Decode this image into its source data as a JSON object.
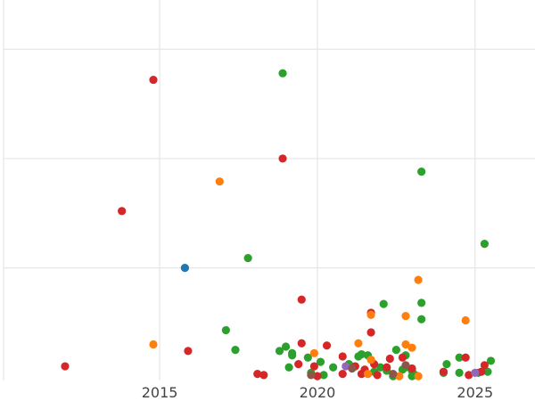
{
  "chart_data": {
    "type": "scatter",
    "title": "",
    "xlabel": "",
    "ylabel": "",
    "x_ticks": [
      2015,
      2020,
      2025
    ],
    "xlim": [
      2010.05,
      2026.9
    ],
    "ylim": [
      -0.03,
      3.45
    ],
    "y_grid": [
      1,
      2,
      3
    ],
    "grid": true,
    "legend": "none",
    "colors": {
      "green": "#2ca02c",
      "red": "#d62728",
      "orange": "#ff7f0e",
      "blue": "#1f77b4",
      "purple": "#9467bd",
      "brown": "#8c564b"
    },
    "series": [
      {
        "color": "green",
        "points": [
          [
            2018.9,
            2.78
          ],
          [
            2023.3,
            1.88
          ],
          [
            2025.3,
            1.22
          ],
          [
            2017.8,
            1.09
          ],
          [
            2022.1,
            0.67
          ],
          [
            2023.3,
            0.68
          ],
          [
            2023.3,
            0.53
          ],
          [
            2017.1,
            0.43
          ],
          [
            2017.4,
            0.25
          ],
          [
            2018.8,
            0.24
          ],
          [
            2019.0,
            0.28
          ],
          [
            2019.2,
            0.22
          ],
          [
            2019.2,
            0.2
          ],
          [
            2019.7,
            0.18
          ],
          [
            2020.1,
            0.14
          ],
          [
            2019.1,
            0.09
          ],
          [
            2020.5,
            0.09
          ],
          [
            2021.0,
            0.12
          ],
          [
            2021.3,
            0.19
          ],
          [
            2021.4,
            0.21
          ],
          [
            2021.6,
            0.2
          ],
          [
            2022.0,
            0.09
          ],
          [
            2022.5,
            0.25
          ],
          [
            2022.7,
            0.07
          ],
          [
            2022.8,
            0.09
          ],
          [
            2022.8,
            0.2
          ],
          [
            2023.0,
            0.06
          ],
          [
            2023.1,
            0.02
          ],
          [
            2023.0,
            0.01
          ],
          [
            2022.4,
            0.01
          ],
          [
            2024.0,
            0.04
          ],
          [
            2024.1,
            0.12
          ],
          [
            2024.5,
            0.18
          ],
          [
            2024.5,
            0.04
          ],
          [
            2025.1,
            0.04
          ],
          [
            2025.5,
            0.15
          ],
          [
            2025.4,
            0.05
          ],
          [
            2020.2,
            0.02
          ],
          [
            2019.8,
            0.04
          ],
          [
            2021.8,
            0.05
          ],
          [
            2022.2,
            0.06
          ]
        ]
      },
      {
        "color": "red",
        "points": [
          [
            2014.8,
            2.72
          ],
          [
            2018.9,
            2.0
          ],
          [
            2013.8,
            1.52
          ],
          [
            2019.5,
            0.71
          ],
          [
            2021.7,
            0.59
          ],
          [
            2021.7,
            0.41
          ],
          [
            2019.5,
            0.31
          ],
          [
            2020.3,
            0.29
          ],
          [
            2015.9,
            0.24
          ],
          [
            2012.0,
            0.1
          ],
          [
            2018.1,
            0.03
          ],
          [
            2018.3,
            0.02
          ],
          [
            2019.9,
            0.1
          ],
          [
            2020.8,
            0.19
          ],
          [
            2021.2,
            0.1
          ],
          [
            2021.5,
            0.07
          ],
          [
            2021.8,
            0.12
          ],
          [
            2022.3,
            0.17
          ],
          [
            2022.2,
            0.09
          ],
          [
            2022.7,
            0.18
          ],
          [
            2023.0,
            0.08
          ],
          [
            2024.0,
            0.05
          ],
          [
            2024.7,
            0.18
          ],
          [
            2025.3,
            0.11
          ],
          [
            2024.8,
            0.02
          ],
          [
            2025.2,
            0.05
          ],
          [
            2021.9,
            0.02
          ],
          [
            2021.4,
            0.03
          ],
          [
            2020.0,
            0.01
          ],
          [
            2020.8,
            0.03
          ],
          [
            2019.4,
            0.12
          ]
        ]
      },
      {
        "color": "orange",
        "points": [
          [
            2016.9,
            1.79
          ],
          [
            2023.2,
            0.89
          ],
          [
            2022.8,
            0.56
          ],
          [
            2024.7,
            0.52
          ],
          [
            2021.7,
            0.57
          ],
          [
            2014.8,
            0.3
          ],
          [
            2021.3,
            0.31
          ],
          [
            2022.8,
            0.3
          ],
          [
            2023.0,
            0.27
          ],
          [
            2019.9,
            0.22
          ],
          [
            2021.7,
            0.16
          ],
          [
            2022.6,
            0.01
          ],
          [
            2021.6,
            0.03
          ],
          [
            2023.2,
            0.01
          ]
        ]
      },
      {
        "color": "blue",
        "points": [
          [
            2015.8,
            1.0
          ]
        ]
      },
      {
        "color": "purple",
        "points": [
          [
            2020.9,
            0.1
          ],
          [
            2025.0,
            0.04
          ]
        ]
      },
      {
        "color": "brown",
        "points": [
          [
            2019.8,
            0.02
          ],
          [
            2021.1,
            0.08
          ],
          [
            2022.4,
            0.03
          ],
          [
            2022.8,
            0.11
          ]
        ]
      }
    ]
  }
}
